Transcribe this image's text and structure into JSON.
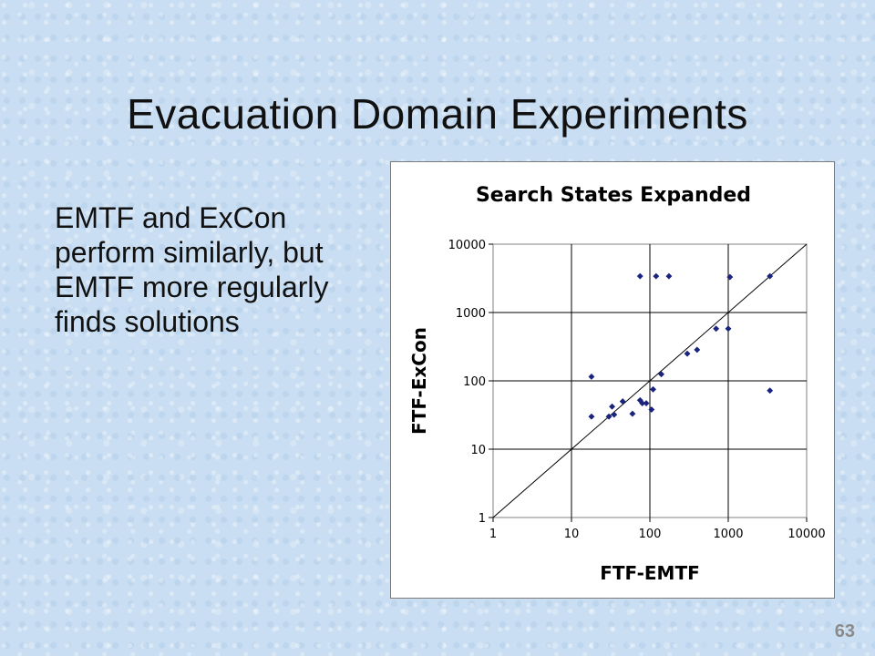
{
  "slide": {
    "title": "Evacuation Domain Experiments",
    "bullet": "EMTF and ExCon perform similarly, but EMTF more regularly finds solutions",
    "page_number": "63"
  },
  "chart_data": {
    "type": "scatter",
    "title": "Search States Expanded",
    "xlabel": "FTF-EMTF",
    "ylabel": "FTF-ExCon",
    "xscale": "log",
    "yscale": "log",
    "xlim": [
      1,
      10000
    ],
    "ylim": [
      1,
      10000
    ],
    "xticks": [
      "1",
      "10",
      "100",
      "1000",
      "10000"
    ],
    "yticks": [
      "1",
      "10",
      "100",
      "1000",
      "10000"
    ],
    "grid": true,
    "legend": "none",
    "reference_line": "y = x",
    "marker_color": "#1a237e",
    "points": [
      {
        "x": 18,
        "y": 115
      },
      {
        "x": 18,
        "y": 30
      },
      {
        "x": 30,
        "y": 30
      },
      {
        "x": 35,
        "y": 32
      },
      {
        "x": 33,
        "y": 42
      },
      {
        "x": 45,
        "y": 50
      },
      {
        "x": 60,
        "y": 33
      },
      {
        "x": 75,
        "y": 52
      },
      {
        "x": 80,
        "y": 47
      },
      {
        "x": 90,
        "y": 47
      },
      {
        "x": 105,
        "y": 38
      },
      {
        "x": 110,
        "y": 75
      },
      {
        "x": 140,
        "y": 125
      },
      {
        "x": 75,
        "y": 3400
      },
      {
        "x": 120,
        "y": 3400
      },
      {
        "x": 175,
        "y": 3400
      },
      {
        "x": 300,
        "y": 250
      },
      {
        "x": 400,
        "y": 285
      },
      {
        "x": 700,
        "y": 580
      },
      {
        "x": 1000,
        "y": 580
      },
      {
        "x": 1050,
        "y": 3300
      },
      {
        "x": 3400,
        "y": 3400
      },
      {
        "x": 3400,
        "y": 72
      }
    ]
  }
}
